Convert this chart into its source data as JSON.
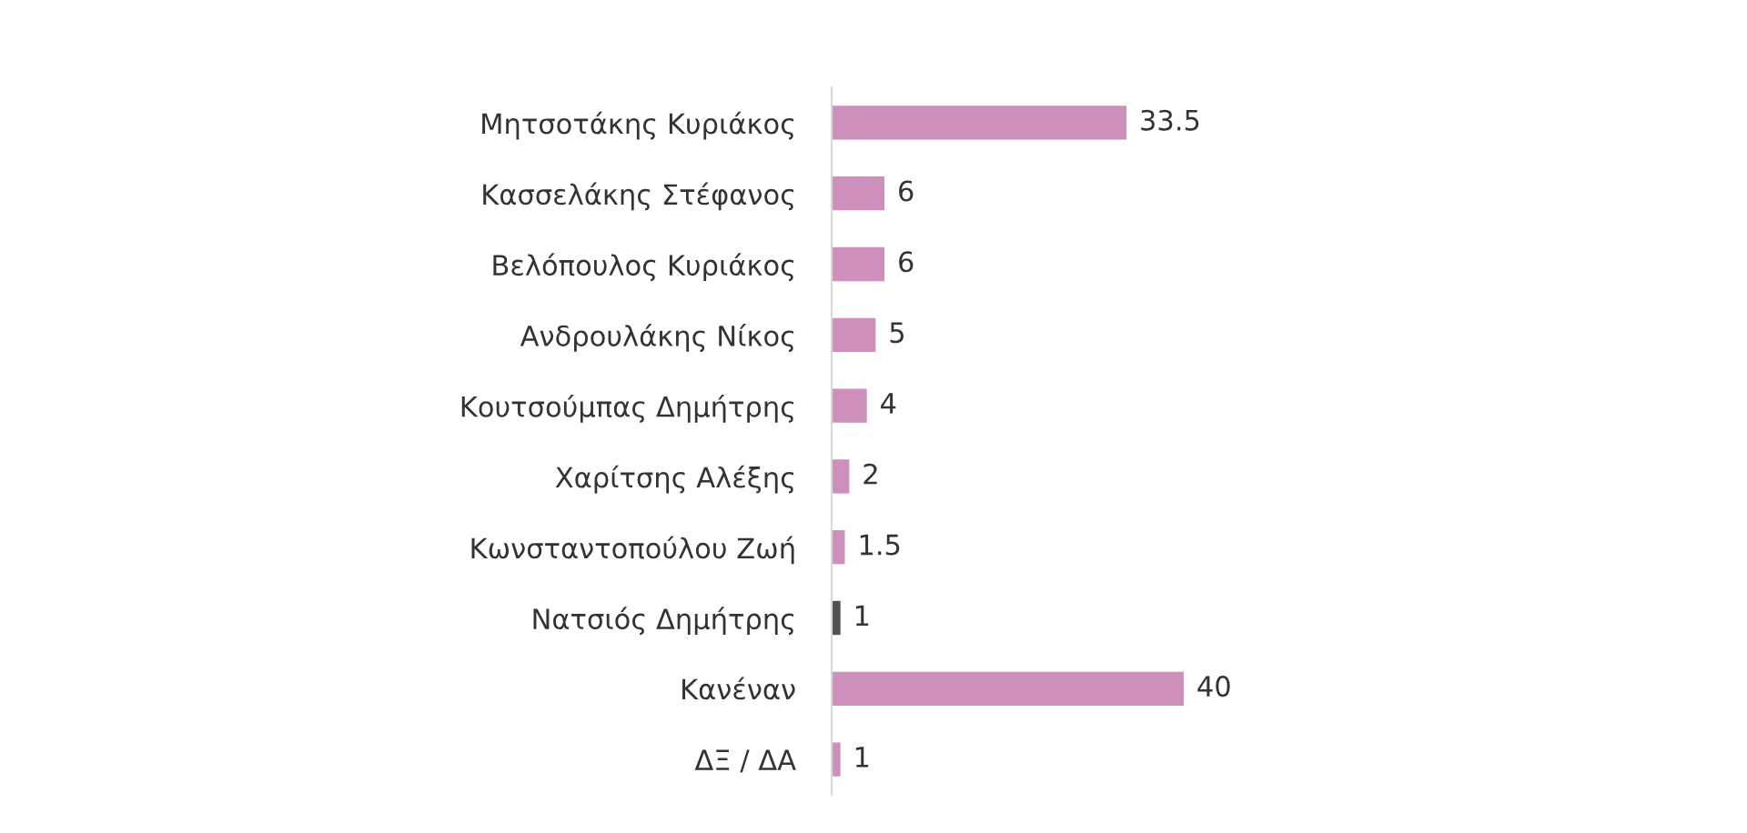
{
  "chart_data": {
    "type": "bar",
    "orientation": "horizontal",
    "data_labels": true,
    "grid": false,
    "legend": false,
    "categories": [
      "Μητσοτάκης Κυριάκος",
      "Κασσελάκης Στέφανος",
      "Βελόπουλος Κυριάκος",
      "Ανδρουλάκης Νίκος",
      "Κουτσούμπας Δημήτρης",
      "Χαρίτσης Αλέξης",
      "Κωνσταντοπούλου Ζωή",
      "Νατσιός Δημήτρης",
      "Κανέναν",
      "ΔΞ / ΔΑ"
    ],
    "values": [
      33.5,
      6,
      6,
      5,
      4,
      2,
      1.5,
      1,
      40,
      1
    ],
    "colors": [
      "#cc90bb",
      "#cc90bb",
      "#cc90bb",
      "#cc90bb",
      "#cc90bb",
      "#cc90bb",
      "#cc90bb",
      "#505050",
      "#cc90bb",
      "#cc90bb"
    ]
  }
}
